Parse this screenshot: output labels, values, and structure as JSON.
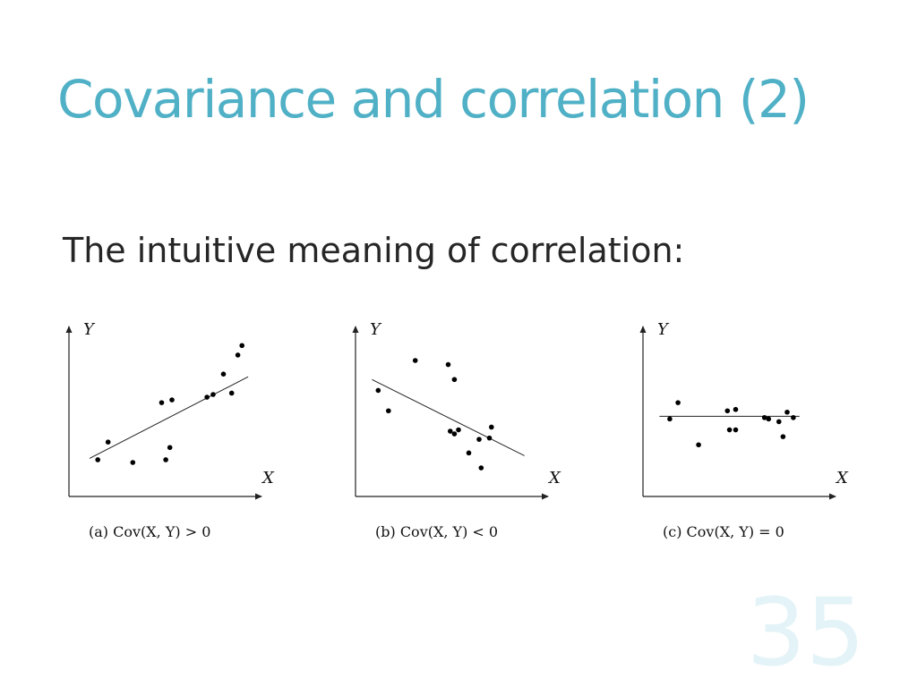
{
  "slide": {
    "title": "Covariance and correlation (2)",
    "subtitle": "The intuitive meaning of correlation:",
    "page_number": "35",
    "title_color": "#4fb0c6"
  },
  "chart_data": [
    {
      "type": "scatter",
      "title": "",
      "xlabel": "X",
      "ylabel": "Y",
      "caption": "(a)  Cov(X, Y) > 0",
      "trend": "increasing",
      "x": [
        0.14,
        0.19,
        0.31,
        0.45,
        0.47,
        0.49,
        0.5,
        0.67,
        0.7,
        0.75,
        0.79,
        0.82,
        0.84
      ],
      "y": [
        0.27,
        0.4,
        0.25,
        0.69,
        0.27,
        0.36,
        0.71,
        0.73,
        0.75,
        0.9,
        0.76,
        1.04,
        1.11
      ],
      "fit_line": {
        "x": [
          0.1,
          0.87
        ],
        "y": [
          0.28,
          0.88
        ]
      },
      "xlim": [
        0,
        1
      ],
      "ylim": [
        0,
        1.25
      ],
      "grid": false
    },
    {
      "type": "scatter",
      "title": "",
      "xlabel": "X",
      "ylabel": "Y",
      "caption": "(b)  Cov(X, Y) < 0",
      "trend": "decreasing",
      "x": [
        0.11,
        0.16,
        0.29,
        0.45,
        0.46,
        0.48,
        0.48,
        0.5,
        0.55,
        0.6,
        0.61,
        0.65,
        0.66
      ],
      "y": [
        0.78,
        0.63,
        1.0,
        0.97,
        0.48,
        0.46,
        0.86,
        0.49,
        0.32,
        0.42,
        0.21,
        0.43,
        0.51
      ],
      "fit_line": {
        "x": [
          0.08,
          0.82
        ],
        "y": [
          0.86,
          0.3
        ]
      },
      "xlim": [
        0,
        1
      ],
      "ylim": [
        0,
        1.25
      ],
      "grid": false
    },
    {
      "type": "scatter",
      "title": "",
      "xlabel": "X",
      "ylabel": "Y",
      "caption": "(c)  Cov(X, Y) = 0",
      "trend": "none",
      "x": [
        0.13,
        0.17,
        0.27,
        0.41,
        0.42,
        0.45,
        0.45,
        0.59,
        0.61,
        0.66,
        0.68,
        0.7,
        0.73
      ],
      "y": [
        0.57,
        0.69,
        0.38,
        0.63,
        0.49,
        0.64,
        0.49,
        0.58,
        0.57,
        0.55,
        0.44,
        0.62,
        0.58
      ],
      "fit_line": {
        "x": [
          0.08,
          0.76
        ],
        "y": [
          0.59,
          0.59
        ]
      },
      "xlim": [
        0,
        1
      ],
      "ylim": [
        0,
        1.25
      ],
      "grid": false
    }
  ]
}
